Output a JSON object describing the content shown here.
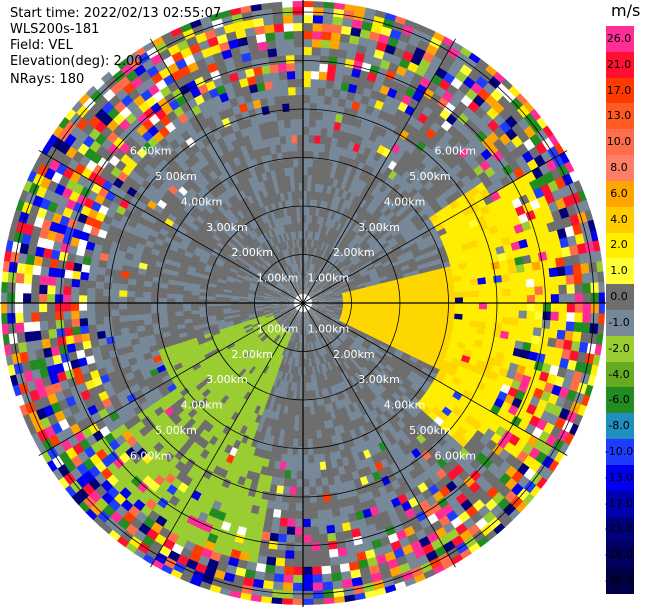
{
  "header": {
    "start_time": "Start time: 2022/02/13 02:55:07",
    "instrument": "WLS200s-181",
    "field": "Field: VEL",
    "elevation": "Elevation(deg): 2.00",
    "nrays": "NRays: 180"
  },
  "colorbar": {
    "units": "m/s",
    "labels": [
      "26.0",
      "21.0",
      "17.0",
      "13.0",
      "10.0",
      "8.0",
      "6.0",
      "4.0",
      "2.0",
      "1.0",
      "0.0",
      "-1.0",
      "-2.0",
      "-4.0",
      "-6.0",
      "-8.0",
      "-10.0",
      "-13.0",
      "-17.0",
      "-21.0",
      "-26.0",
      "-30.0"
    ],
    "colors": [
      "#ff2d95",
      "#ff1030",
      "#ff3a00",
      "#ff5a20",
      "#ff6e4a",
      "#ff7f66",
      "#ffa500",
      "#ffcc00",
      "#ffee00",
      "#ffff33",
      "#6e6e6e",
      "#778899",
      "#9acd32",
      "#66aa22",
      "#228b22",
      "#1f8fbf",
      "#1e3cff",
      "#0000ee",
      "#0000b0",
      "#00007a",
      "#000060",
      "#000044"
    ]
  },
  "range_rings": {
    "labels": [
      "1.00km",
      "2.00km",
      "3.00km",
      "4.00km",
      "5.00km",
      "6.00km"
    ]
  }
}
